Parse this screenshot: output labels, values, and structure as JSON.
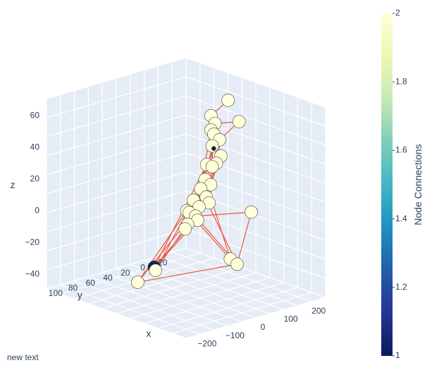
{
  "chart_data": {
    "type": "scatter3d",
    "title": "",
    "annotation": "new text",
    "axes": {
      "x": {
        "label": "x",
        "ticks": [
          -200,
          -100,
          0,
          100,
          200
        ]
      },
      "y": {
        "label": "y",
        "ticks": [
          -20,
          0,
          20,
          40,
          60,
          80,
          100
        ]
      },
      "z": {
        "label": "z",
        "ticks": [
          -40,
          -20,
          0,
          20,
          40,
          60
        ]
      }
    },
    "colorbar": {
      "title": "Node Connections",
      "range": [
        1,
        2
      ],
      "ticks": [
        1,
        1.2,
        1.4,
        1.6,
        1.8,
        2
      ],
      "colorscale": "YlGnBu"
    },
    "edge_color": "#ef553b",
    "node_color_low": "#081d58",
    "node_color_high": "#ffffd9",
    "nodes": [
      {
        "x": -10,
        "y": -5,
        "z": 65,
        "c": 2
      },
      {
        "x": -190,
        "y": 40,
        "z": 70,
        "c": 2
      },
      {
        "x": 20,
        "y": 5,
        "z": 55,
        "c": 2
      },
      {
        "x": 15,
        "y": 2,
        "z": 50,
        "c": 2
      },
      {
        "x": 20,
        "y": 5,
        "z": 46,
        "c": 2
      },
      {
        "x": 10,
        "y": 5,
        "z": 44,
        "c": 2
      },
      {
        "x": 5,
        "y": 0,
        "z": 40,
        "c": 2
      },
      {
        "x": 10,
        "y": 5,
        "z": 35,
        "c": 1
      },
      {
        "x": 0,
        "y": 10,
        "z": 38,
        "c": 2
      },
      {
        "x": 0,
        "y": 0,
        "z": 30,
        "c": 2
      },
      {
        "x": -15,
        "y": 10,
        "z": 28,
        "c": 2
      },
      {
        "x": 20,
        "y": 10,
        "z": 25,
        "c": 2
      },
      {
        "x": 0,
        "y": 10,
        "z": 25,
        "c": 2
      },
      {
        "x": -10,
        "y": 15,
        "z": 15,
        "c": 2
      },
      {
        "x": 10,
        "y": 15,
        "z": 17,
        "c": 2
      },
      {
        "x": 10,
        "y": 20,
        "z": 12,
        "c": 2
      },
      {
        "x": -10,
        "y": 20,
        "z": 8,
        "c": 2
      },
      {
        "x": -20,
        "y": 20,
        "z": 5,
        "c": 2
      },
      {
        "x": -140,
        "y": 10,
        "z": 5,
        "c": 2
      },
      {
        "x": 20,
        "y": 25,
        "z": 5,
        "c": 2
      },
      {
        "x": 0,
        "y": 25,
        "z": 2,
        "c": 2
      },
      {
        "x": -10,
        "y": 30,
        "z": -5,
        "c": 2
      },
      {
        "x": 20,
        "y": 30,
        "z": -2,
        "c": 2
      },
      {
        "x": 10,
        "y": 35,
        "z": -8,
        "c": 2
      },
      {
        "x": -190,
        "y": 50,
        "z": -15,
        "c": 2
      },
      {
        "x": -230,
        "y": 55,
        "z": -15,
        "c": 2
      },
      {
        "x": 60,
        "y": 20,
        "z": -5,
        "c": 2
      },
      {
        "x": 50,
        "y": 25,
        "z": -15,
        "c": 2
      },
      {
        "x": 20,
        "y": 70,
        "z": -30,
        "c": 1
      },
      {
        "x": 60,
        "y": 10,
        "z": -10,
        "c": 2
      },
      {
        "x": 0,
        "y": 75,
        "z": -30,
        "c": 2
      },
      {
        "x": 95,
        "y": 65,
        "z": -45,
        "c": 2
      }
    ],
    "edges": [
      [
        0,
        2
      ],
      [
        1,
        3
      ],
      [
        1,
        6
      ],
      [
        2,
        5
      ],
      [
        3,
        9
      ],
      [
        4,
        12
      ],
      [
        5,
        13
      ],
      [
        6,
        17
      ],
      [
        7,
        19
      ],
      [
        8,
        20
      ],
      [
        9,
        21
      ],
      [
        10,
        23
      ],
      [
        11,
        20
      ],
      [
        12,
        22
      ],
      [
        13,
        21
      ],
      [
        14,
        24
      ],
      [
        15,
        25
      ],
      [
        16,
        26
      ],
      [
        17,
        28
      ],
      [
        18,
        29
      ],
      [
        19,
        30
      ],
      [
        20,
        31
      ],
      [
        21,
        28
      ],
      [
        22,
        24
      ],
      [
        23,
        30
      ],
      [
        25,
        29
      ],
      [
        26,
        31
      ],
      [
        27,
        22
      ],
      [
        4,
        29
      ],
      [
        11,
        28
      ],
      [
        10,
        16
      ],
      [
        14,
        27
      ],
      [
        15,
        23
      ],
      [
        18,
        25
      ],
      [
        31,
        25
      ],
      [
        8,
        3
      ]
    ]
  }
}
